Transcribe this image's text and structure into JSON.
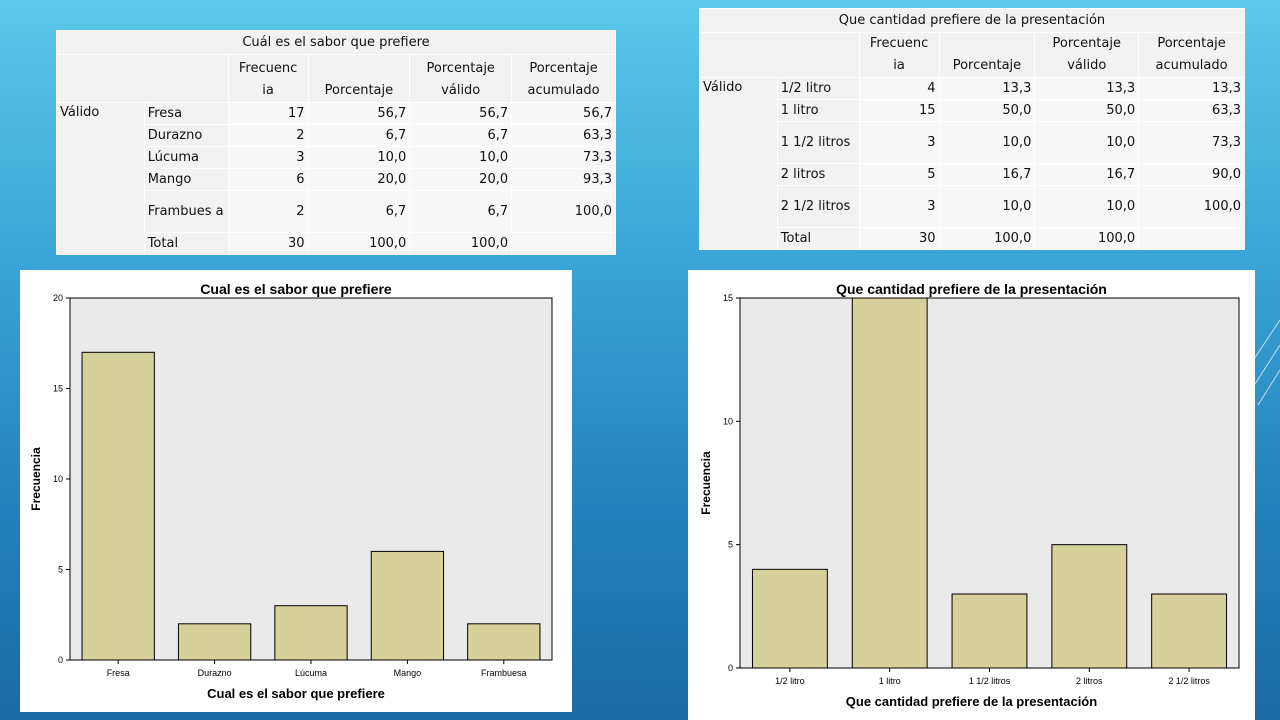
{
  "table1": {
    "title": "Cuál es el sabor que prefiere",
    "headers": [
      "Frecuenc ia",
      "Porcentaje",
      "Porcentaje válido",
      "Porcentaje acumulado"
    ],
    "group_label": "Válido",
    "rows": [
      {
        "label": "Fresa",
        "freq": "17",
        "pct": "56,7",
        "valid": "56,7",
        "cum": "56,7"
      },
      {
        "label": "Durazno",
        "freq": "2",
        "pct": "6,7",
        "valid": "6,7",
        "cum": "63,3"
      },
      {
        "label": "Lúcuma",
        "freq": "3",
        "pct": "10,0",
        "valid": "10,0",
        "cum": "73,3"
      },
      {
        "label": "Mango",
        "freq": "6",
        "pct": "20,0",
        "valid": "20,0",
        "cum": "93,3"
      },
      {
        "label": "Frambues a",
        "freq": "2",
        "pct": "6,7",
        "valid": "6,7",
        "cum": "100,0"
      },
      {
        "label": "Total",
        "freq": "30",
        "pct": "100,0",
        "valid": "100,0",
        "cum": ""
      }
    ]
  },
  "table2": {
    "title": "Que cantidad prefiere de la presentación",
    "headers": [
      "Frecuenc ia",
      "Porcentaje",
      "Porcentaje válido",
      "Porcentaje acumulado"
    ],
    "group_label": "Válido",
    "rows": [
      {
        "label": "1/2 litro",
        "freq": "4",
        "pct": "13,3",
        "valid": "13,3",
        "cum": "13,3"
      },
      {
        "label": "1 litro",
        "freq": "15",
        "pct": "50,0",
        "valid": "50,0",
        "cum": "63,3"
      },
      {
        "label": "1 1/2 litros",
        "freq": "3",
        "pct": "10,0",
        "valid": "10,0",
        "cum": "73,3"
      },
      {
        "label": "2 litros",
        "freq": "5",
        "pct": "16,7",
        "valid": "16,7",
        "cum": "90,0"
      },
      {
        "label": "2 1/2 litros",
        "freq": "3",
        "pct": "10,0",
        "valid": "10,0",
        "cum": "100,0"
      },
      {
        "label": "Total",
        "freq": "30",
        "pct": "100,0",
        "valid": "100,0",
        "cum": ""
      }
    ]
  },
  "chart_data": [
    {
      "type": "bar",
      "title": "Cual es el sabor que prefiere",
      "xlabel": "Cual es el sabor que prefiere",
      "ylabel": "Frecuencia",
      "categories": [
        "Fresa",
        "Durazno",
        "Lúcuma",
        "Mango",
        "Frambuesa"
      ],
      "values": [
        17,
        2,
        3,
        6,
        2
      ],
      "ylim": [
        0,
        20
      ],
      "yticks": [
        "0",
        "5",
        "10",
        "15",
        "20"
      ],
      "bar_color": "#d6d19a",
      "plot_bg": "#eaeaea",
      "grid": false
    },
    {
      "type": "bar",
      "title": "Que cantidad prefiere de la presentación",
      "xlabel": "Que cantidad prefiere de la presentación",
      "ylabel": "Frecuencia",
      "categories": [
        "1/2 litro",
        "1 litro",
        "1 1/2 litros",
        "2 litros",
        "2 1/2 litros"
      ],
      "values": [
        4,
        15,
        3,
        5,
        3
      ],
      "ylim": [
        0,
        15
      ],
      "yticks": [
        "0",
        "5",
        "10",
        "15"
      ],
      "bar_color": "#d6d19a",
      "plot_bg": "#eaeaea",
      "grid": false
    }
  ]
}
